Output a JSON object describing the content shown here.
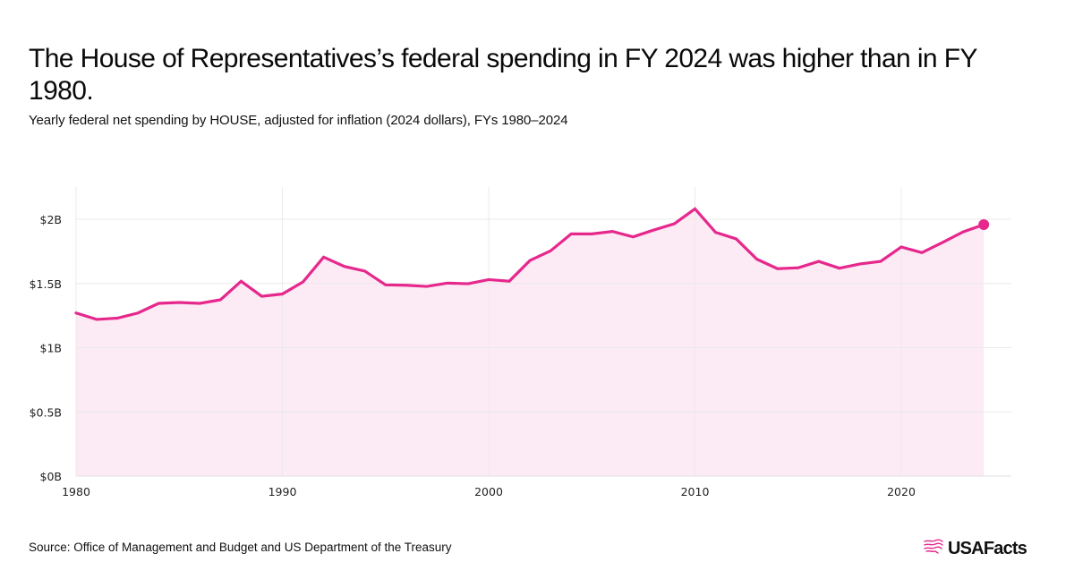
{
  "header": {
    "title": "The House of Representatives’s federal spending in FY 2024 was higher than in FY 1980.",
    "subtitle": "Yearly federal net spending by HOUSE, adjusted for inflation (2024 dollars), FYs 1980–2024"
  },
  "footer": {
    "source": "Source: Office of Management and Budget and US Department of the Treasury",
    "logo_text": "USAFacts",
    "logo_icon": "usa-map-flag-icon"
  },
  "colors": {
    "line": "#e6288d",
    "fill": "#fcebf4",
    "grid": "#e8e8e8",
    "grid_in_fill": "#efd8e3"
  },
  "chart_data": {
    "type": "area",
    "title": "The House of Representatives’s federal spending in FY 2024 was higher than in FY 1980.",
    "subtitle": "Yearly federal net spending by HOUSE, adjusted for inflation (2024 dollars), FYs 1980–2024",
    "xlabel": "",
    "ylabel": "",
    "xlim": [
      1980,
      2025.3
    ],
    "ylim": [
      0,
      2.25
    ],
    "grid": true,
    "legend": "none",
    "x_ticks": [
      1980,
      1990,
      2000,
      2010,
      2020
    ],
    "x_tick_labels": [
      "1980",
      "1990",
      "2000",
      "2010",
      "2020"
    ],
    "y_ticks": [
      0,
      0.5,
      1,
      1.5,
      2
    ],
    "y_tick_labels": [
      "$0B",
      "$0.5B",
      "$1B",
      "$1.5B",
      "$2B"
    ],
    "units": "billions of 2024 dollars",
    "highlight_last_point": true,
    "x": [
      1980,
      1981,
      1982,
      1983,
      1984,
      1985,
      1986,
      1987,
      1988,
      1989,
      1990,
      1991,
      1992,
      1993,
      1994,
      1995,
      1996,
      1997,
      1998,
      1999,
      2000,
      2001,
      2002,
      2003,
      2004,
      2005,
      2006,
      2007,
      2008,
      2009,
      2010,
      2011,
      2012,
      2013,
      2014,
      2015,
      2016,
      2017,
      2018,
      2019,
      2020,
      2021,
      2022,
      2023,
      2024
    ],
    "series": [
      {
        "name": "House net spending",
        "values": [
          1.27,
          1.22,
          1.23,
          1.27,
          1.345,
          1.352,
          1.345,
          1.373,
          1.517,
          1.4,
          1.418,
          1.512,
          1.705,
          1.633,
          1.596,
          1.489,
          1.486,
          1.477,
          1.503,
          1.498,
          1.53,
          1.518,
          1.679,
          1.754,
          1.886,
          1.886,
          1.905,
          1.863,
          1.916,
          1.965,
          2.081,
          1.898,
          1.847,
          1.689,
          1.615,
          1.622,
          1.672,
          1.619,
          1.652,
          1.672,
          1.784,
          1.74,
          1.819,
          1.902,
          1.958
        ]
      }
    ]
  }
}
